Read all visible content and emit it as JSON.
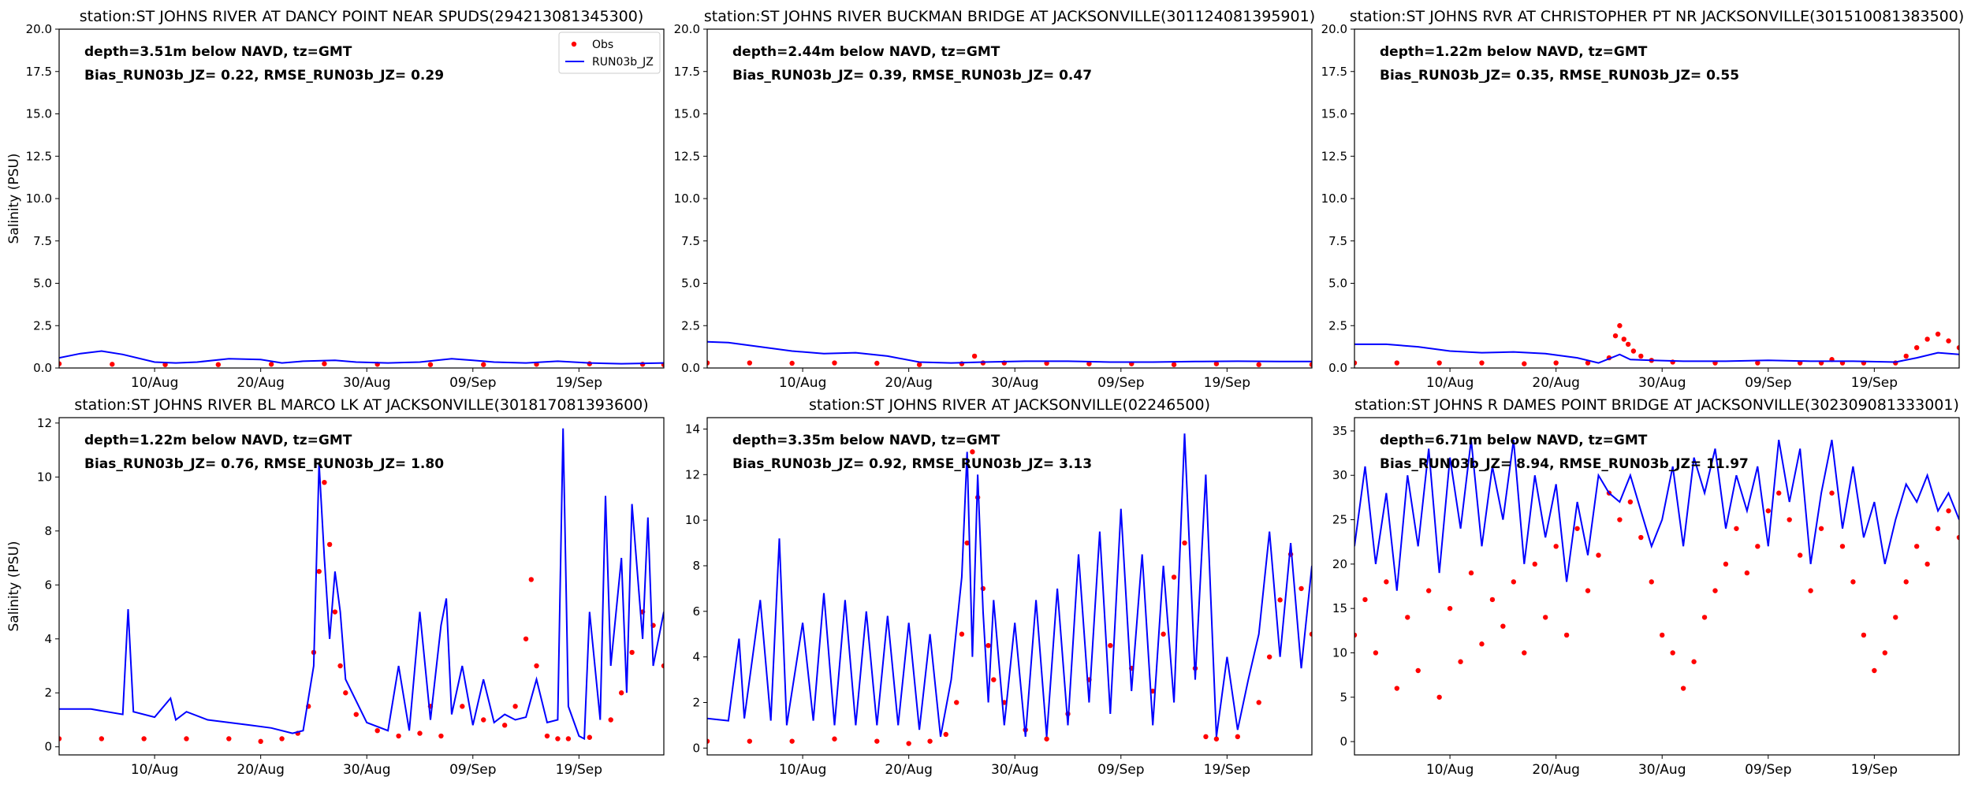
{
  "colors": {
    "obs": "#ff0000",
    "model": "#0000ff",
    "axis": "#000000",
    "background": "#ffffff"
  },
  "legend": {
    "obs_label": "Obs",
    "model_label": "RUN03b_JZ",
    "placement": "top-right of first panel"
  },
  "ylabel": "Salinity (PSU)",
  "xticks": [
    "10/Aug",
    "20/Aug",
    "30/Aug",
    "09/Sep",
    "19/Sep"
  ],
  "x_range_days": [
    0,
    57
  ],
  "xtick_days": [
    9,
    19,
    29,
    39,
    49
  ],
  "chart_data": [
    {
      "type": "line",
      "title": "station:ST JOHNS RIVER AT DANCY POINT NEAR SPUDS(294213081345300)",
      "info_line1": "depth=3.51m below NAVD, tz=GMT",
      "info_line2": "Bias_RUN03b_JZ=  0.22, RMSE_RUN03b_JZ=  0.29",
      "ylim": [
        0,
        20
      ],
      "yticks": [
        "0.0",
        "2.5",
        "5.0",
        "7.5",
        "10.0",
        "12.5",
        "15.0",
        "17.5",
        "20.0"
      ],
      "ytick_values": [
        0,
        2.5,
        5,
        7.5,
        10,
        12.5,
        15,
        17.5,
        20
      ],
      "show_ylabel": true,
      "show_legend": true,
      "obs": {
        "x": [
          0,
          5,
          10,
          15,
          20,
          25,
          30,
          35,
          40,
          45,
          50,
          55,
          57
        ],
        "y": [
          0.25,
          0.22,
          0.2,
          0.2,
          0.22,
          0.25,
          0.22,
          0.2,
          0.2,
          0.22,
          0.25,
          0.22,
          0.2
        ]
      },
      "model": {
        "x": [
          0,
          2,
          4,
          6,
          9,
          11,
          13,
          16,
          19,
          21,
          23,
          26,
          28,
          31,
          34,
          37,
          39,
          41,
          44,
          47,
          50,
          53,
          57
        ],
        "y": [
          0.6,
          0.85,
          1.0,
          0.8,
          0.35,
          0.3,
          0.35,
          0.55,
          0.5,
          0.3,
          0.4,
          0.45,
          0.35,
          0.3,
          0.35,
          0.55,
          0.45,
          0.35,
          0.3,
          0.4,
          0.3,
          0.25,
          0.3
        ]
      }
    },
    {
      "type": "line",
      "title": "station:ST JOHNS RIVER BUCKMAN BRIDGE AT JACKSONVILLE(301124081395901)",
      "info_line1": "depth=2.44m below NAVD, tz=GMT",
      "info_line2": "Bias_RUN03b_JZ=  0.39, RMSE_RUN03b_JZ=  0.47",
      "ylim": [
        0,
        20
      ],
      "yticks": [
        "0.0",
        "2.5",
        "5.0",
        "7.5",
        "10.0",
        "12.5",
        "15.0",
        "17.5",
        "20.0"
      ],
      "ytick_values": [
        0,
        2.5,
        5,
        7.5,
        10,
        12.5,
        15,
        17.5,
        20
      ],
      "show_ylabel": false,
      "show_legend": false,
      "obs": {
        "x": [
          0,
          4,
          8,
          12,
          16,
          20,
          24,
          25.2,
          26,
          28,
          32,
          36,
          40,
          44,
          48,
          52,
          57
        ],
        "y": [
          0.3,
          0.3,
          0.28,
          0.3,
          0.28,
          0.2,
          0.25,
          0.7,
          0.3,
          0.3,
          0.28,
          0.25,
          0.25,
          0.2,
          0.25,
          0.2,
          0.2
        ]
      },
      "model": {
        "x": [
          0,
          2,
          5,
          8,
          11,
          14,
          17,
          20,
          23,
          26,
          30,
          34,
          38,
          42,
          46,
          50,
          54,
          57
        ],
        "y": [
          1.55,
          1.5,
          1.25,
          1.0,
          0.85,
          0.9,
          0.7,
          0.35,
          0.3,
          0.35,
          0.4,
          0.4,
          0.35,
          0.35,
          0.38,
          0.4,
          0.38,
          0.38
        ]
      }
    },
    {
      "type": "line",
      "title": "station:ST JOHNS RVR AT CHRISTOPHER PT NR JACKSONVILLE(301510081383500)",
      "info_line1": "depth=1.22m below NAVD, tz=GMT",
      "info_line2": "Bias_RUN03b_JZ=  0.35, RMSE_RUN03b_JZ=  0.55",
      "ylim": [
        0,
        20
      ],
      "yticks": [
        "0.0",
        "2.5",
        "5.0",
        "7.5",
        "10.0",
        "12.5",
        "15.0",
        "17.5",
        "20.0"
      ],
      "ytick_values": [
        0,
        2.5,
        5,
        7.5,
        10,
        12.5,
        15,
        17.5,
        20
      ],
      "show_ylabel": false,
      "show_legend": false,
      "obs": {
        "x": [
          0,
          4,
          8,
          12,
          16,
          19,
          22,
          24,
          24.6,
          25,
          25.4,
          25.8,
          26.3,
          27,
          28,
          30,
          34,
          38,
          42,
          44,
          45,
          46,
          48,
          51,
          52,
          53,
          54,
          55,
          56,
          57
        ],
        "y": [
          0.3,
          0.3,
          0.3,
          0.3,
          0.25,
          0.3,
          0.3,
          0.6,
          1.9,
          2.5,
          1.7,
          1.4,
          1.0,
          0.7,
          0.45,
          0.35,
          0.3,
          0.3,
          0.3,
          0.3,
          0.5,
          0.3,
          0.3,
          0.3,
          0.7,
          1.2,
          1.7,
          2.0,
          1.6,
          1.2
        ]
      },
      "model": {
        "x": [
          0,
          3,
          6,
          9,
          12,
          15,
          18,
          21,
          23,
          25,
          26,
          28,
          31,
          35,
          39,
          43,
          47,
          51,
          53,
          55,
          57
        ],
        "y": [
          1.4,
          1.4,
          1.25,
          1.0,
          0.9,
          0.95,
          0.85,
          0.6,
          0.3,
          0.8,
          0.5,
          0.45,
          0.4,
          0.4,
          0.45,
          0.4,
          0.4,
          0.35,
          0.6,
          0.9,
          0.8
        ]
      }
    },
    {
      "type": "line",
      "title": "station:ST JOHNS RIVER BL MARCO LK AT JACKSONVILLE(301817081393600)",
      "info_line1": "depth=1.22m below NAVD, tz=GMT",
      "info_line2": "Bias_RUN03b_JZ=  0.76, RMSE_RUN03b_JZ=  1.80",
      "ylim": [
        -0.3,
        12.2
      ],
      "yticks": [
        "0",
        "2",
        "4",
        "6",
        "8",
        "10",
        "12"
      ],
      "ytick_values": [
        0,
        2,
        4,
        6,
        8,
        10,
        12
      ],
      "show_ylabel": true,
      "show_legend": false,
      "obs": {
        "x": [
          0,
          4,
          8,
          12,
          16,
          19,
          21,
          22.5,
          23.5,
          24,
          24.5,
          25,
          25.5,
          26,
          26.5,
          27,
          28,
          30,
          32,
          34,
          35,
          36,
          38,
          40,
          42,
          43,
          44,
          44.5,
          45,
          46,
          47,
          48,
          50,
          52,
          53,
          54,
          55,
          56,
          57
        ],
        "y": [
          0.3,
          0.3,
          0.3,
          0.3,
          0.3,
          0.2,
          0.3,
          0.5,
          1.5,
          3.5,
          6.5,
          9.8,
          7.5,
          5.0,
          3.0,
          2.0,
          1.2,
          0.6,
          0.4,
          0.5,
          1.5,
          0.4,
          1.5,
          1.0,
          0.8,
          1.5,
          4.0,
          6.2,
          3.0,
          0.4,
          0.3,
          0.3,
          0.35,
          1.0,
          2.0,
          3.5,
          5.0,
          4.5,
          3.0
        ]
      },
      "model": {
        "x": [
          0,
          3,
          6,
          6.5,
          7,
          9,
          10.5,
          11,
          12,
          14,
          16,
          18,
          20,
          22,
          23,
          24,
          24.5,
          25,
          25.5,
          26,
          26.5,
          27,
          29,
          31,
          32,
          33,
          34,
          35,
          36,
          36.5,
          37,
          38,
          39,
          40,
          41,
          42,
          43,
          44,
          45,
          46,
          47,
          47.5,
          48,
          49,
          49.5,
          50,
          51,
          51.5,
          52,
          53,
          53.5,
          54,
          55,
          55.5,
          56,
          57
        ],
        "y": [
          1.4,
          1.4,
          1.2,
          5.1,
          1.3,
          1.1,
          1.8,
          1.0,
          1.3,
          1.0,
          0.9,
          0.8,
          0.7,
          0.5,
          0.6,
          3.0,
          10.5,
          7.0,
          4.0,
          6.5,
          5.0,
          2.5,
          0.9,
          0.6,
          3.0,
          0.6,
          5.0,
          1.0,
          4.5,
          5.5,
          1.2,
          3.0,
          0.8,
          2.5,
          0.9,
          1.2,
          1.0,
          1.1,
          2.5,
          0.9,
          1.0,
          11.8,
          1.5,
          0.4,
          0.3,
          5.0,
          1.0,
          9.3,
          3.0,
          7.0,
          2.0,
          9.0,
          4.0,
          8.5,
          3.0,
          5.0
        ]
      }
    },
    {
      "type": "line",
      "title": "station:ST JOHNS RIVER AT JACKSONVILLE(02246500)",
      "info_line1": "depth=3.35m below NAVD, tz=GMT",
      "info_line2": "Bias_RUN03b_JZ=  0.92, RMSE_RUN03b_JZ=  3.13",
      "ylim": [
        -0.3,
        14.5
      ],
      "yticks": [
        "0",
        "2",
        "4",
        "6",
        "8",
        "10",
        "12",
        "14"
      ],
      "ytick_values": [
        0,
        2,
        4,
        6,
        8,
        10,
        12,
        14
      ],
      "show_ylabel": false,
      "show_legend": false,
      "obs": {
        "x": [
          0,
          4,
          8,
          12,
          16,
          19,
          21,
          22.5,
          23.5,
          24,
          24.5,
          25,
          25.5,
          26,
          26.5,
          27,
          28,
          30,
          32,
          34,
          36,
          38,
          40,
          42,
          43,
          44,
          45,
          46,
          47,
          48,
          50,
          52,
          53,
          54,
          55,
          56,
          57
        ],
        "y": [
          0.3,
          0.3,
          0.3,
          0.4,
          0.3,
          0.2,
          0.3,
          0.6,
          2.0,
          5.0,
          9.0,
          13.0,
          11.0,
          7.0,
          4.5,
          3.0,
          2.0,
          0.8,
          0.4,
          1.5,
          3.0,
          4.5,
          3.5,
          2.5,
          5.0,
          7.5,
          9.0,
          3.5,
          0.5,
          0.4,
          0.5,
          2.0,
          4.0,
          6.5,
          8.5,
          7.0,
          5.0
        ]
      },
      "model": {
        "x": [
          0,
          2,
          3,
          3.5,
          5,
          6,
          6.8,
          7.5,
          9,
          10,
          11,
          12,
          13,
          14,
          15,
          16,
          17,
          18,
          19,
          20,
          21,
          22,
          23,
          24,
          24.5,
          25,
          25.5,
          26,
          26.5,
          27,
          28,
          29,
          30,
          31,
          32,
          33,
          34,
          35,
          36,
          37,
          38,
          39,
          40,
          41,
          42,
          43,
          44,
          45,
          46,
          47,
          48,
          49,
          50,
          51,
          52,
          53,
          54,
          55,
          56,
          57
        ],
        "y": [
          1.3,
          1.2,
          4.8,
          1.3,
          6.5,
          1.2,
          9.2,
          1.0,
          5.5,
          1.2,
          6.8,
          1.0,
          6.5,
          1.0,
          6.0,
          1.0,
          5.8,
          1.0,
          5.5,
          0.8,
          5.0,
          0.5,
          3.0,
          7.5,
          13.0,
          4.0,
          12.0,
          6.0,
          2.0,
          6.5,
          1.0,
          5.5,
          0.5,
          6.5,
          0.5,
          7.0,
          1.0,
          8.5,
          2.0,
          9.5,
          1.5,
          10.5,
          2.5,
          8.5,
          1.0,
          8.0,
          2.0,
          13.8,
          3.0,
          12.0,
          0.5,
          4.0,
          0.8,
          3.0,
          5.0,
          9.5,
          4.0,
          9.0,
          3.5,
          8.0
        ]
      }
    },
    {
      "type": "line",
      "title": "station:ST JOHNS R DAMES POINT BRIDGE AT JACKSONVILLE(302309081333001)",
      "info_line1": "depth=6.71m below NAVD, tz=GMT",
      "info_line2": "Bias_RUN03b_JZ=  8.94, RMSE_RUN03b_JZ= 11.97",
      "ylim": [
        -1.5,
        36.5
      ],
      "yticks": [
        "0",
        "5",
        "10",
        "15",
        "20",
        "25",
        "30",
        "35"
      ],
      "ytick_values": [
        0,
        5,
        10,
        15,
        20,
        25,
        30,
        35
      ],
      "show_ylabel": false,
      "show_legend": false,
      "obs": {
        "x": [
          0,
          1,
          2,
          3,
          4,
          5,
          6,
          7,
          8,
          9,
          10,
          11,
          12,
          13,
          14,
          15,
          16,
          17,
          18,
          19,
          20,
          21,
          22,
          23,
          24,
          25,
          26,
          27,
          28,
          29,
          30,
          31,
          32,
          33,
          34,
          35,
          36,
          37,
          38,
          39,
          40,
          41,
          42,
          43,
          44,
          45,
          46,
          47,
          48,
          49,
          50,
          51,
          52,
          53,
          54,
          55,
          56,
          57
        ],
        "y": [
          12,
          16,
          10,
          18,
          6,
          14,
          8,
          17,
          5,
          15,
          9,
          19,
          11,
          16,
          13,
          18,
          10,
          20,
          14,
          22,
          12,
          24,
          17,
          21,
          28,
          25,
          27,
          23,
          18,
          12,
          10,
          6,
          9,
          14,
          17,
          20,
          24,
          19,
          22,
          26,
          28,
          25,
          21,
          17,
          24,
          28,
          22,
          18,
          12,
          8,
          10,
          14,
          18,
          22,
          20,
          24,
          26,
          23
        ]
      },
      "model": {
        "x": [
          0,
          1,
          2,
          3,
          4,
          5,
          6,
          7,
          8,
          9,
          10,
          11,
          12,
          13,
          14,
          15,
          16,
          17,
          18,
          19,
          20,
          21,
          22,
          23,
          24,
          25,
          26,
          27,
          28,
          29,
          30,
          31,
          32,
          33,
          34,
          35,
          36,
          37,
          38,
          39,
          40,
          41,
          42,
          43,
          44,
          45,
          46,
          47,
          48,
          49,
          50,
          51,
          52,
          53,
          54,
          55,
          56,
          57
        ],
        "y": [
          22,
          31,
          20,
          28,
          17,
          30,
          22,
          33,
          19,
          32,
          24,
          34,
          22,
          31,
          25,
          34,
          20,
          30,
          23,
          29,
          18,
          27,
          21,
          30,
          28,
          27,
          30,
          26,
          22,
          25,
          31,
          22,
          32,
          28,
          33,
          24,
          30,
          26,
          31,
          22,
          34,
          27,
          33,
          20,
          28,
          34,
          24,
          31,
          23,
          27,
          20,
          25,
          29,
          27,
          30,
          26,
          28,
          25
        ]
      }
    }
  ]
}
